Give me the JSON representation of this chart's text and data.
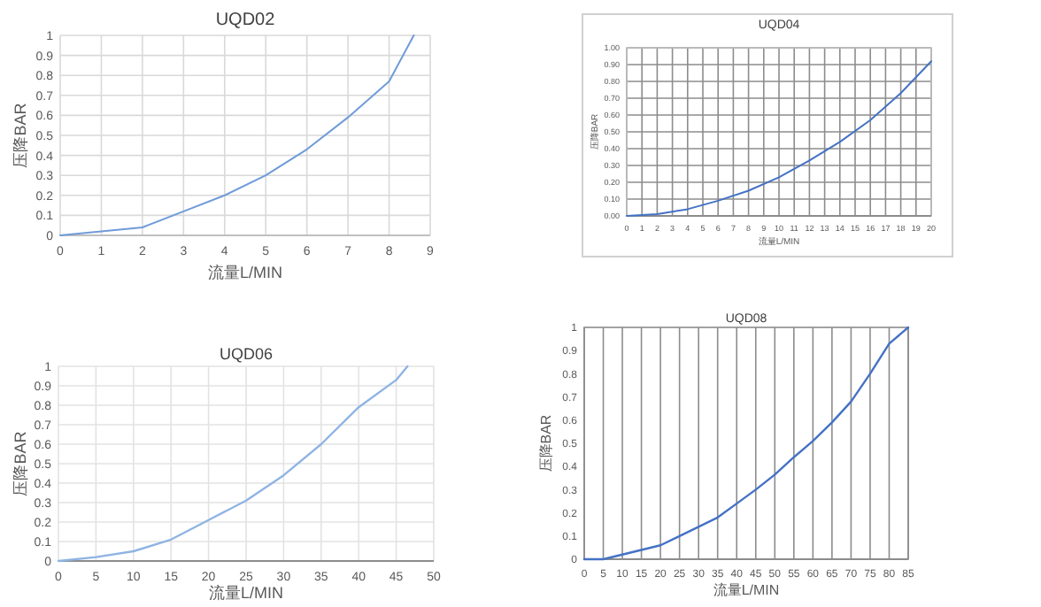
{
  "chart_data": [
    {
      "type": "line",
      "title": "UQD02",
      "xlabel": "流量L/MIN",
      "ylabel": "压降BAR",
      "xlim": [
        0,
        9
      ],
      "ylim": [
        0,
        1
      ],
      "xticks": [
        0,
        1,
        2,
        3,
        4,
        5,
        6,
        7,
        8,
        9
      ],
      "yticks": [
        0,
        0.1,
        0.2,
        0.3,
        0.4,
        0.5,
        0.6,
        0.7,
        0.8,
        0.9,
        1
      ],
      "grid": true,
      "series": [
        {
          "color": "#6f9bd8",
          "x": [
            0,
            1,
            2,
            3,
            4,
            5,
            6,
            7,
            8,
            8.6
          ],
          "values": [
            0,
            0.02,
            0.04,
            0.12,
            0.2,
            0.3,
            0.43,
            0.59,
            0.77,
            1.0
          ]
        }
      ]
    },
    {
      "type": "line",
      "title": "UQD04",
      "xlabel": "流量L/MIN",
      "ylabel": "压降BAR",
      "xlim": [
        0,
        20
      ],
      "ylim": [
        0,
        1
      ],
      "xticks": [
        0,
        1,
        2,
        3,
        4,
        5,
        6,
        7,
        8,
        9,
        10,
        11,
        12,
        13,
        14,
        15,
        16,
        17,
        18,
        19,
        20
      ],
      "yticks": [
        {
          "value": 0,
          "label": "0.00"
        },
        {
          "value": 0.1,
          "label": "0.10"
        },
        {
          "value": 0.2,
          "label": "0.20"
        },
        {
          "value": 0.3,
          "label": "0.30"
        },
        {
          "value": 0.4,
          "label": "0.40"
        },
        {
          "value": 0.5,
          "label": "0.50"
        },
        {
          "value": 0.6,
          "label": "0.60"
        },
        {
          "value": 0.7,
          "label": "0.70"
        },
        {
          "value": 0.8,
          "label": "0.80"
        },
        {
          "value": 0.9,
          "label": "0.90"
        },
        {
          "value": 1,
          "label": "1.00"
        }
      ],
      "grid": true,
      "series": [
        {
          "color": "#4472c4",
          "x": [
            0,
            2,
            4,
            6,
            8,
            10,
            12,
            14,
            16,
            18,
            20
          ],
          "values": [
            0,
            0.01,
            0.04,
            0.09,
            0.15,
            0.23,
            0.33,
            0.44,
            0.57,
            0.73,
            0.92
          ]
        }
      ]
    },
    {
      "type": "line",
      "title": "UQD06",
      "xlabel": "流量L/MIN",
      "ylabel": "压降BAR",
      "xlim": [
        0,
        50
      ],
      "ylim": [
        0,
        1
      ],
      "xticks": [
        0,
        5,
        10,
        15,
        20,
        25,
        30,
        35,
        40,
        45,
        50
      ],
      "yticks": [
        0,
        0.1,
        0.2,
        0.3,
        0.4,
        0.5,
        0.6,
        0.7,
        0.8,
        0.9,
        1
      ],
      "grid": true,
      "series": [
        {
          "color": "#8fb4e3",
          "x": [
            0,
            5,
            10,
            15,
            20,
            25,
            30,
            35,
            40,
            45,
            46.5
          ],
          "values": [
            0,
            0.02,
            0.05,
            0.11,
            0.21,
            0.31,
            0.44,
            0.6,
            0.79,
            0.93,
            1.0
          ]
        }
      ]
    },
    {
      "type": "line",
      "title": "UQD08",
      "xlabel": "流量L/MIN",
      "ylabel": "压降BAR",
      "xlim": [
        0,
        85
      ],
      "ylim": [
        0,
        1
      ],
      "xticks": [
        0,
        5,
        10,
        15,
        20,
        25,
        30,
        35,
        40,
        45,
        50,
        55,
        60,
        65,
        70,
        75,
        80,
        85
      ],
      "yticks": [
        0,
        0.1,
        0.2,
        0.3,
        0.4,
        0.5,
        0.6,
        0.7,
        0.8,
        0.9,
        1
      ],
      "grid": "x",
      "series": [
        {
          "color": "#4472c4",
          "x": [
            0,
            5,
            10,
            15,
            20,
            25,
            30,
            35,
            40,
            45,
            50,
            55,
            60,
            65,
            70,
            75,
            80,
            85
          ],
          "values": [
            0,
            0.0,
            0.02,
            0.04,
            0.06,
            0.1,
            0.14,
            0.18,
            0.24,
            0.3,
            0.365,
            0.44,
            0.51,
            0.59,
            0.68,
            0.8,
            0.93,
            1.0
          ]
        }
      ]
    }
  ]
}
